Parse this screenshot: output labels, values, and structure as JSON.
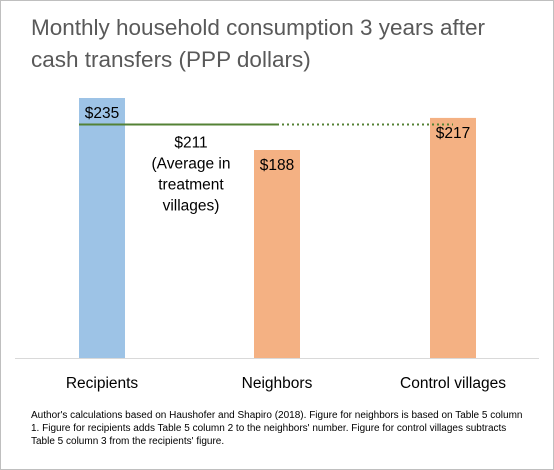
{
  "title": "Monthly household consumption 3 years after cash transfers (PPP dollars)",
  "footnote": "Author's calculations based on Haushofer and Shapiro (2018). Figure for neighbors is based on Table 5 column 1. Figure for recipients adds Table 5 column 2 to the neighbors' number. Figure for control villages subtracts Table 5 column 3 from the recipients' figure.",
  "colors": {
    "recipients": "#9dc3e6",
    "neighbors": "#f4b183",
    "control": "#f4b183",
    "average_line": "#548235",
    "text": "#000000",
    "title": "#595959",
    "axis": "#d9d9d9"
  },
  "chart_data": {
    "type": "bar",
    "categories": [
      "Recipients",
      "Neighbors",
      "Control villages"
    ],
    "values": [
      235,
      188,
      217
    ],
    "data_labels": [
      "$235",
      "$188",
      "$217"
    ],
    "ylim": [
      0,
      235
    ],
    "grid": false,
    "reference_line": {
      "value": 211,
      "label_lines": [
        "$211",
        "(Average in",
        "treatment",
        "villages)"
      ],
      "solid_span": [
        "Recipients",
        "Neighbors"
      ],
      "dotted_span": [
        "Neighbors",
        "Control villages"
      ]
    }
  }
}
